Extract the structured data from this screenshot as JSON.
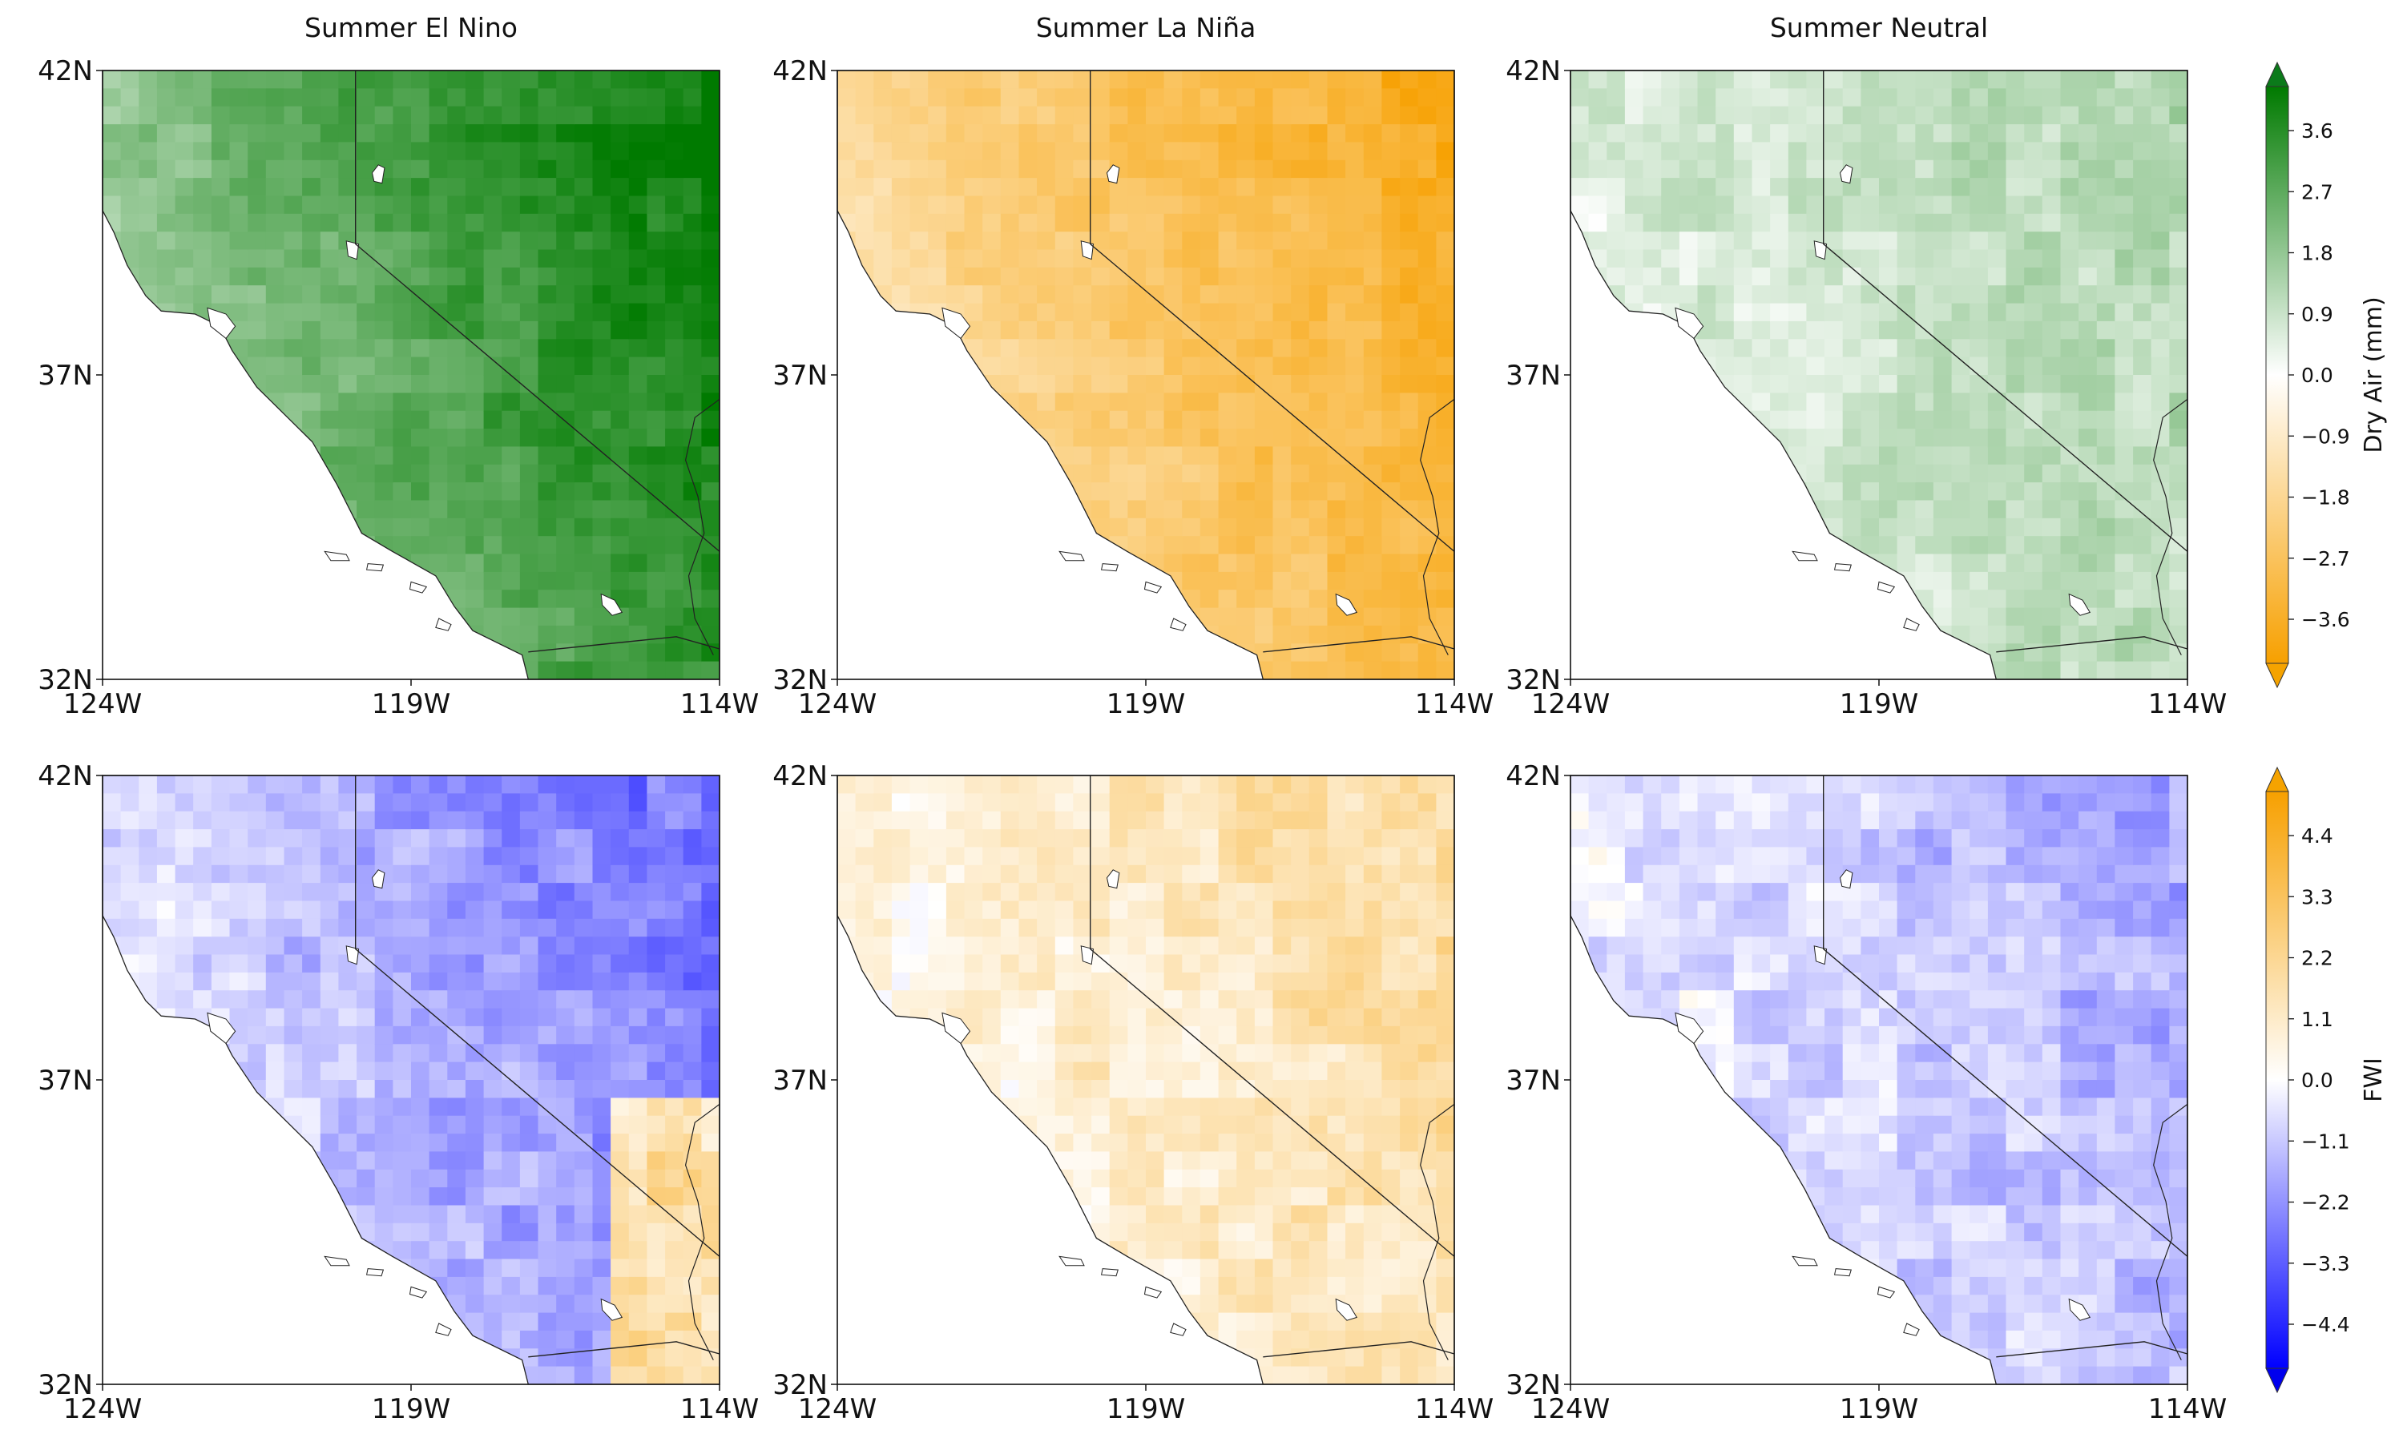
{
  "figure": {
    "panel_titles": [
      "Summer El Nino",
      "Summer La Niña",
      "Summer Neutral"
    ],
    "lat_labels": [
      "42N",
      "37N",
      "32N"
    ],
    "lon_labels": [
      "124W",
      "119W",
      "114W"
    ],
    "rows": [
      {
        "variable": "Dry Air",
        "colorbar": {
          "label": "Dry Air (mm)",
          "ticks": [
            "3.6",
            "2.7",
            "1.8",
            "0.9",
            "0.0",
            "−0.9",
            "−1.8",
            "−2.7",
            "−3.6"
          ],
          "positive_color": "#007a00",
          "negative_color": "#f7a000",
          "top_color": "#0b7a1a",
          "bottom_color": "#f5a300"
        },
        "panels": [
          {
            "scenario": "El Nino",
            "regional_mean_anomaly": 3.2
          },
          {
            "scenario": "La Niña",
            "regional_mean_anomaly": -2.8
          },
          {
            "scenario": "Neutral",
            "regional_mean_anomaly": 1.0
          }
        ]
      },
      {
        "variable": "FWI",
        "colorbar": {
          "label": "FWI",
          "ticks": [
            "4.4",
            "3.3",
            "2.2",
            "1.1",
            "0.0",
            "−1.1",
            "−2.2",
            "−3.3",
            "−4.4"
          ],
          "positive_color": "#f7a000",
          "negative_color": "#0000ff",
          "top_color": "#f5a300",
          "bottom_color": "#0000ee"
        },
        "panels": [
          {
            "scenario": "El Nino",
            "regional_mean_anomaly": -2.2
          },
          {
            "scenario": "La Niña",
            "regional_mean_anomaly": 1.5
          },
          {
            "scenario": "Neutral",
            "regional_mean_anomaly": -1.3
          }
        ]
      }
    ]
  }
}
